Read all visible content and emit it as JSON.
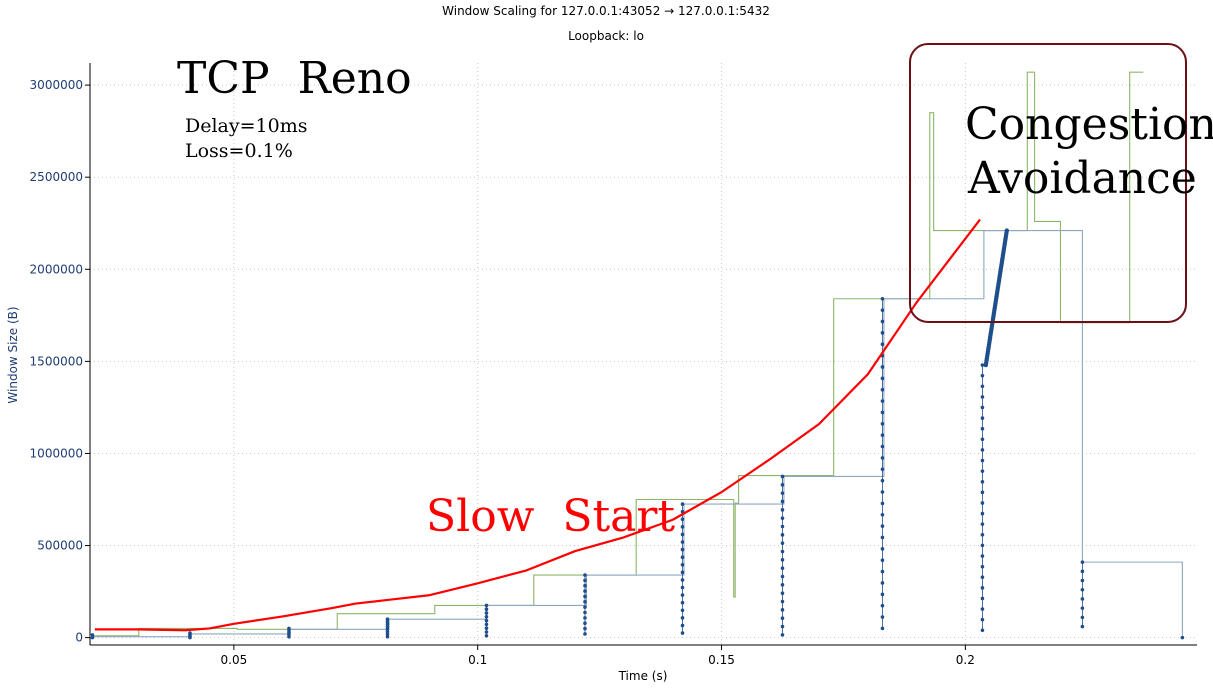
{
  "window_title": "Window Scaling for 127.0.0.1:43052 → 127.0.0.1:5432",
  "subtitle": "Loopback: lo",
  "colors": {
    "background": "#ffffff",
    "bytes_in_flight": "#1f4e8c",
    "receive_window": "#8db66a",
    "transmit_window": "#8fa7c4",
    "annotation_curve": "#ff0000",
    "annotation_box": "#6b0f16",
    "grid": "#c8c8c8",
    "axis_text": "#1f3d73"
  },
  "annotations": {
    "heading": "TCP  Reno",
    "delay": "Delay=10ms",
    "loss": "Loss=0.1%",
    "slow_start": "Slow  Start",
    "congestion_line1": "Congestion",
    "congestion_line2": "Avoidance"
  },
  "chart_data": {
    "type": "line",
    "title": "Window Scaling for 127.0.0.1:43052 → 127.0.0.1:5432",
    "subtitle": "Loopback: lo",
    "xlabel": "Time (s)",
    "ylabel": "Window Size (B)",
    "xlim": [
      0.0205,
      0.2475
    ],
    "ylim": [
      -40000,
      3120000
    ],
    "x_ticks": [
      0.05,
      0.1,
      0.15,
      0.2
    ],
    "x_tick_labels": [
      "0.05",
      "0.1",
      "0.15",
      "0.2"
    ],
    "y_ticks": [
      0,
      500000,
      1000000,
      1500000,
      2000000,
      2500000,
      3000000
    ],
    "y_tick_labels": [
      "0",
      "500000",
      "1000000",
      "1500000",
      "2000000",
      "2500000",
      "3000000"
    ],
    "grid": true,
    "series": [
      {
        "style": "step",
        "color": "#8db66a",
        "points": [
          [
            0.0205,
            10000
          ],
          [
            0.0305,
            50000
          ],
          [
            0.05,
            50000
          ],
          [
            0.0507,
            45000
          ],
          [
            0.071,
            45000
          ],
          [
            0.0712,
            130000
          ],
          [
            0.091,
            130000
          ],
          [
            0.0912,
            175000
          ],
          [
            0.111,
            175000
          ],
          [
            0.1115,
            340000
          ],
          [
            0.131,
            340000
          ],
          [
            0.1325,
            750000
          ],
          [
            0.1525,
            750000
          ],
          [
            0.1525,
            220000
          ],
          [
            0.1528,
            730000
          ],
          [
            0.1535,
            880000
          ],
          [
            0.1725,
            880000
          ],
          [
            0.173,
            1840000
          ],
          [
            0.1925,
            1840000
          ],
          [
            0.1927,
            2850000
          ],
          [
            0.1933,
            2850000
          ],
          [
            0.1935,
            2210000
          ],
          [
            0.2125,
            2210000
          ],
          [
            0.2127,
            3070000
          ],
          [
            0.214,
            3070000
          ],
          [
            0.2142,
            2260000
          ],
          [
            0.2185,
            2260000
          ],
          [
            0.2195,
            1710000
          ],
          [
            0.2335,
            1710000
          ],
          [
            0.2337,
            3070000
          ],
          [
            0.2365,
            3070000
          ]
        ]
      },
      {
        "style": "step",
        "color": "#8fa7c4",
        "points": [
          [
            0.0205,
            5000
          ],
          [
            0.0409,
            5000
          ],
          [
            0.041,
            20000
          ],
          [
            0.061,
            20000
          ],
          [
            0.0612,
            45000
          ],
          [
            0.0815,
            45000
          ],
          [
            0.0818,
            100000
          ],
          [
            0.1015,
            100000
          ],
          [
            0.1018,
            175000
          ],
          [
            0.122,
            175000
          ],
          [
            0.1223,
            340000
          ],
          [
            0.142,
            340000
          ],
          [
            0.1423,
            725000
          ],
          [
            0.1625,
            725000
          ],
          [
            0.1628,
            875000
          ],
          [
            0.183,
            875000
          ],
          [
            0.1833,
            1840000
          ],
          [
            0.2035,
            1840000
          ],
          [
            0.2038,
            2210000
          ],
          [
            0.2238,
            2210000
          ],
          [
            0.224,
            410000
          ],
          [
            0.2445,
            410000
          ],
          [
            0.2445,
            0
          ]
        ]
      },
      {
        "style": "dots",
        "color": "#1f4e8c",
        "clusters": [
          {
            "x": 0.021,
            "y_min": 0,
            "y_max": 15000,
            "n": 2
          },
          {
            "x": 0.041,
            "y_min": 0,
            "y_max": 25000,
            "n": 4
          },
          {
            "x": 0.0613,
            "y_min": 5000,
            "y_max": 50000,
            "n": 5
          },
          {
            "x": 0.0815,
            "y_min": 5000,
            "y_max": 100000,
            "n": 8
          },
          {
            "x": 0.1018,
            "y_min": 10000,
            "y_max": 175000,
            "n": 9
          },
          {
            "x": 0.122,
            "y_min": 20000,
            "y_max": 340000,
            "n": 12
          },
          {
            "x": 0.142,
            "y_min": 25000,
            "y_max": 725000,
            "n": 18
          },
          {
            "x": 0.1625,
            "y_min": 15000,
            "y_max": 875000,
            "n": 20
          },
          {
            "x": 0.183,
            "y_min": 50000,
            "y_max": 1840000,
            "n": 30
          },
          {
            "x": 0.2035,
            "y_min": 40000,
            "y_max": 1480000,
            "n": 26
          },
          {
            "x": 0.224,
            "y_min": 60000,
            "y_max": 410000,
            "n": 8
          },
          {
            "x": 0.2445,
            "y_min": 0,
            "y_max": 0,
            "n": 1
          }
        ],
        "ramp": {
          "x_start": 0.2042,
          "y_start": 1480000,
          "x_end": 0.2085,
          "y_end": 2210000,
          "n": 60
        }
      },
      {
        "style": "line",
        "color": "#ff0000",
        "points": [
          [
            0.0215,
            45000
          ],
          [
            0.03,
            45000
          ],
          [
            0.04,
            40000
          ],
          [
            0.045,
            50000
          ],
          [
            0.05,
            75000
          ],
          [
            0.06,
            115000
          ],
          [
            0.07,
            160000
          ],
          [
            0.075,
            185000
          ],
          [
            0.09,
            230000
          ],
          [
            0.1,
            295000
          ],
          [
            0.11,
            365000
          ],
          [
            0.12,
            470000
          ],
          [
            0.13,
            545000
          ],
          [
            0.14,
            640000
          ],
          [
            0.15,
            790000
          ],
          [
            0.16,
            970000
          ],
          [
            0.17,
            1160000
          ],
          [
            0.18,
            1430000
          ],
          [
            0.19,
            1820000
          ],
          [
            0.203,
            2270000
          ]
        ]
      }
    ]
  }
}
